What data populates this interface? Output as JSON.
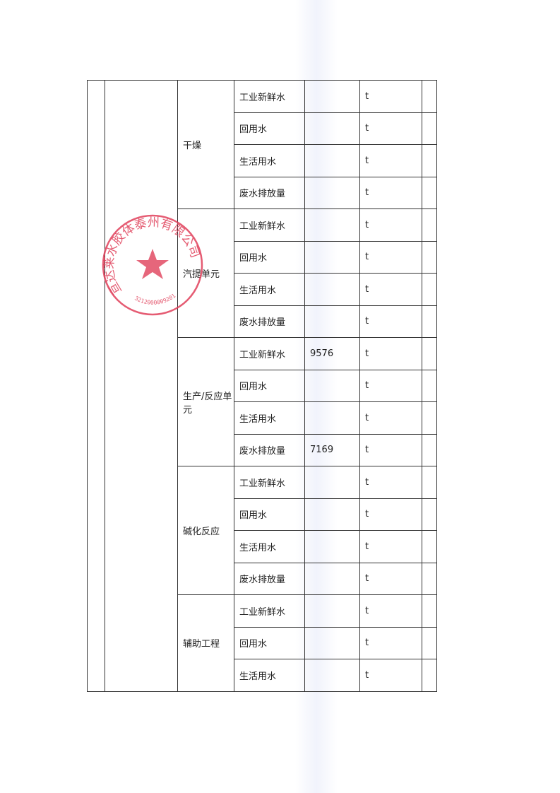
{
  "table": {
    "groups": [
      {
        "unit": "干燥",
        "rows": [
          {
            "item": "工业新鲜水",
            "value": "",
            "unit": "t"
          },
          {
            "item": "回用水",
            "value": "",
            "unit": "t"
          },
          {
            "item": "生活用水",
            "value": "",
            "unit": "t"
          },
          {
            "item": "废水排放量",
            "value": "",
            "unit": "t"
          }
        ]
      },
      {
        "unit": "汽提单元",
        "rows": [
          {
            "item": "工业新鲜水",
            "value": "",
            "unit": "t"
          },
          {
            "item": "回用水",
            "value": "",
            "unit": "t"
          },
          {
            "item": "生活用水",
            "value": "",
            "unit": "t"
          },
          {
            "item": "废水排放量",
            "value": "",
            "unit": "t"
          }
        ]
      },
      {
        "unit": "生产/反应单元",
        "rows": [
          {
            "item": "工业新鲜水",
            "value": "9576",
            "unit": "t"
          },
          {
            "item": "回用水",
            "value": "",
            "unit": "t"
          },
          {
            "item": "生活用水",
            "value": "",
            "unit": "t"
          },
          {
            "item": "废水排放量",
            "value": "7169",
            "unit": "t"
          }
        ]
      },
      {
        "unit": "碱化反应",
        "rows": [
          {
            "item": "工业新鲜水",
            "value": "",
            "unit": "t"
          },
          {
            "item": "回用水",
            "value": "",
            "unit": "t"
          },
          {
            "item": "生活用水",
            "value": "",
            "unit": "t"
          },
          {
            "item": "废水排放量",
            "value": "",
            "unit": "t"
          }
        ]
      },
      {
        "unit": "辅助工程",
        "rows": [
          {
            "item": "工业新鲜水",
            "value": "",
            "unit": "t"
          },
          {
            "item": "回用水",
            "value": "",
            "unit": "t"
          },
          {
            "item": "生活用水",
            "value": "",
            "unit": "t"
          }
        ]
      }
    ]
  },
  "stamp": {
    "text": "亘达莱水胶体泰州有限公司",
    "number": "3212000009201",
    "color": "#e0405a"
  }
}
